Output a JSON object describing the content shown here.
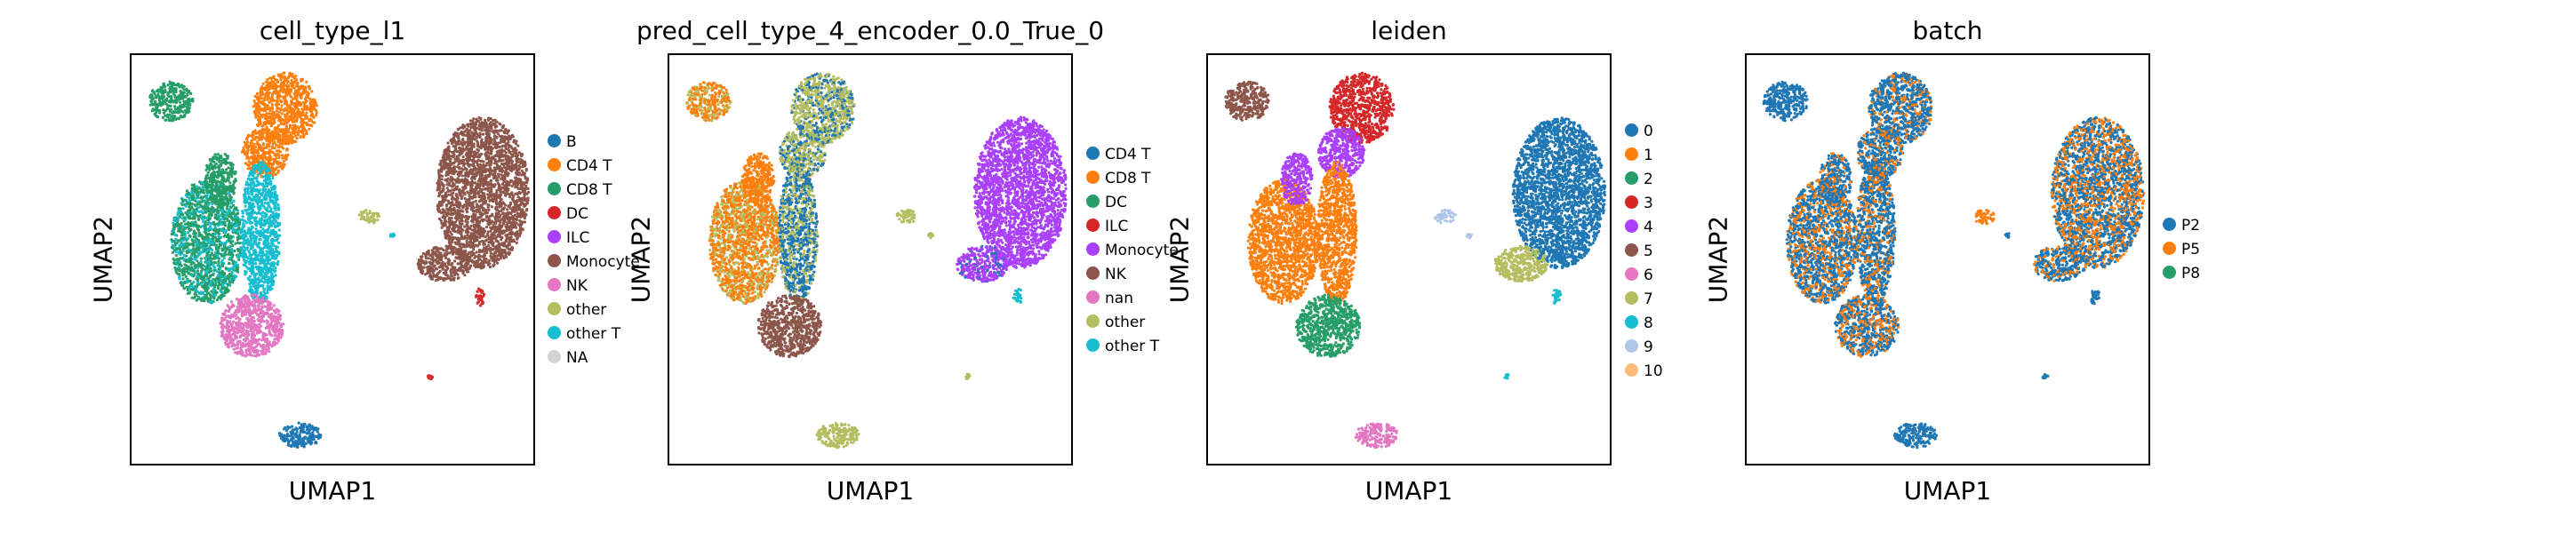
{
  "chart_data": [
    {
      "type": "scatter",
      "title": "cell_type_l1",
      "xlabel": "UMAP1",
      "ylabel": "UMAP2",
      "grid": false,
      "legend_position": "right",
      "legend": [
        {
          "label": "B",
          "color": "#1f77b4"
        },
        {
          "label": "CD4 T",
          "color": "#ff7f0e"
        },
        {
          "label": "CD8 T",
          "color": "#279e68"
        },
        {
          "label": "DC",
          "color": "#d62728"
        },
        {
          "label": "ILC",
          "color": "#aa40fc"
        },
        {
          "label": "Monocyte",
          "color": "#8c564b"
        },
        {
          "label": "NK",
          "color": "#e377c2"
        },
        {
          "label": "other",
          "color": "#b5bd61"
        },
        {
          "label": "other T",
          "color": "#17becf"
        },
        {
          "label": "NA",
          "color": "#d3d3d3"
        }
      ]
    },
    {
      "type": "scatter",
      "title": "pred_cell_type_4_encoder_0.0_True_0",
      "xlabel": "UMAP1",
      "ylabel": "UMAP2",
      "grid": false,
      "legend_position": "right",
      "legend": [
        {
          "label": "CD4 T",
          "color": "#1f77b4"
        },
        {
          "label": "CD8 T",
          "color": "#ff7f0e"
        },
        {
          "label": "DC",
          "color": "#279e68"
        },
        {
          "label": "ILC",
          "color": "#d62728"
        },
        {
          "label": "Monocyte",
          "color": "#aa40fc"
        },
        {
          "label": "NK",
          "color": "#8c564b"
        },
        {
          "label": "nan",
          "color": "#e377c2"
        },
        {
          "label": "other",
          "color": "#b5bd61"
        },
        {
          "label": "other T",
          "color": "#17becf"
        }
      ]
    },
    {
      "type": "scatter",
      "title": "leiden",
      "xlabel": "UMAP1",
      "ylabel": "UMAP2",
      "grid": false,
      "legend_position": "right",
      "legend": [
        {
          "label": "0",
          "color": "#1f77b4"
        },
        {
          "label": "1",
          "color": "#ff7f0e"
        },
        {
          "label": "2",
          "color": "#279e68"
        },
        {
          "label": "3",
          "color": "#d62728"
        },
        {
          "label": "4",
          "color": "#aa40fc"
        },
        {
          "label": "5",
          "color": "#8c564b"
        },
        {
          "label": "6",
          "color": "#e377c2"
        },
        {
          "label": "7",
          "color": "#b5bd61"
        },
        {
          "label": "8",
          "color": "#17becf"
        },
        {
          "label": "9",
          "color": "#aec7e8"
        },
        {
          "label": "10",
          "color": "#ffbb78"
        }
      ]
    },
    {
      "type": "scatter",
      "title": "batch",
      "xlabel": "UMAP1",
      "ylabel": "UMAP2",
      "grid": false,
      "legend_position": "right",
      "legend": [
        {
          "label": "P2",
          "color": "#1f77b4"
        },
        {
          "label": "P5",
          "color": "#ff7f0e"
        },
        {
          "label": "P8",
          "color": "#279e68"
        }
      ]
    }
  ]
}
